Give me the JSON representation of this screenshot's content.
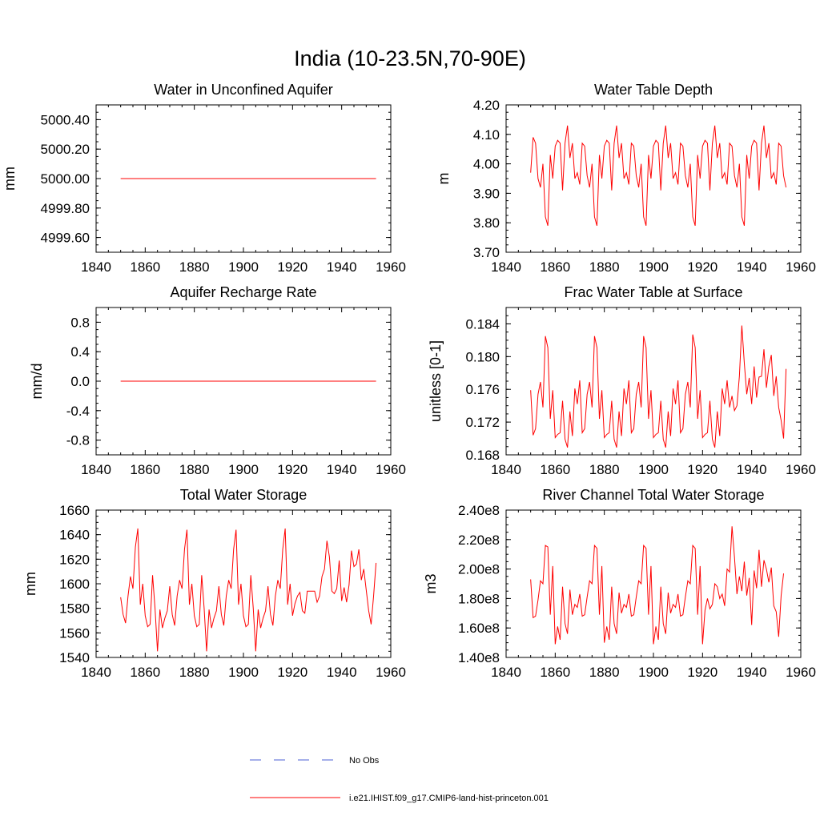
{
  "title": "India (10-23.5N,70-90E)",
  "legend": {
    "items": [
      {
        "label": "No Obs",
        "color": "#4b5fd6",
        "style": "dashed"
      },
      {
        "label": "i.e21.IHIST.f09_g17.CMIP6-land-hist-princeton.001",
        "color": "#ff0000",
        "style": "solid"
      }
    ]
  },
  "chart_data": [
    {
      "type": "line",
      "title": "Water in Unconfined Aquifer",
      "ylabel": "mm",
      "xlim": [
        1840,
        1960
      ],
      "ylim": [
        4999.5,
        5000.5
      ],
      "xticks": [
        1840,
        1860,
        1880,
        1900,
        1920,
        1940,
        1960
      ],
      "yticks": [
        4999.6,
        4999.8,
        5000.0,
        5000.2,
        5000.4
      ],
      "ytick_labels": [
        "4999.60",
        "4999.80",
        "5000.00",
        "5000.20",
        "5000.40"
      ],
      "series": [
        {
          "color": "#ff0000",
          "x_start": 1850,
          "constant": 5000.0,
          "values": []
        }
      ]
    },
    {
      "type": "line",
      "title": "Water Table Depth",
      "ylabel": "m",
      "xlim": [
        1840,
        1960
      ],
      "ylim": [
        3.7,
        4.2
      ],
      "xticks": [
        1840,
        1860,
        1880,
        1900,
        1920,
        1940,
        1960
      ],
      "yticks": [
        3.7,
        3.8,
        3.9,
        4.0,
        4.1,
        4.2
      ],
      "ytick_labels": [
        "3.70",
        "3.80",
        "3.90",
        "4.00",
        "4.10",
        "4.20"
      ],
      "series": [
        {
          "color": "#ff0000",
          "x_start": 1850,
          "values": [
            3.97,
            4.09,
            4.07,
            3.95,
            3.92,
            4.0,
            3.82,
            3.79,
            4.03,
            3.95,
            4.06,
            4.08,
            4.07,
            3.91,
            4.07,
            4.13,
            4.02,
            4.07,
            3.95,
            3.97,
            3.93,
            4.07,
            4.06,
            3.96,
            3.92,
            4.0,
            3.82,
            3.79,
            4.03,
            3.95,
            4.06,
            4.08,
            4.07,
            3.91,
            4.07,
            4.13,
            4.02,
            4.07,
            3.95,
            3.97,
            3.93,
            4.07,
            4.06,
            3.96,
            3.92,
            4.0,
            3.82,
            3.79,
            4.03,
            3.95,
            4.06,
            4.08,
            4.07,
            3.91,
            4.07,
            4.13,
            4.02,
            4.07,
            3.95,
            3.97,
            3.93,
            4.07,
            4.06,
            3.96,
            3.92,
            4.0,
            3.82,
            3.79,
            4.03,
            3.95,
            4.06,
            4.08,
            4.07,
            3.91,
            4.07,
            4.13,
            4.02,
            4.07,
            3.95,
            3.97,
            3.93,
            4.07,
            4.06,
            3.96,
            3.92,
            4.0,
            3.82,
            3.79,
            4.03,
            3.95,
            4.06,
            4.08,
            4.07,
            3.91,
            4.07,
            4.13,
            4.02,
            4.07,
            3.95,
            3.97,
            3.93,
            4.07,
            4.06,
            3.96,
            3.92
          ]
        }
      ]
    },
    {
      "type": "line",
      "title": "Aquifer Recharge Rate",
      "ylabel": "mm/d",
      "xlim": [
        1840,
        1960
      ],
      "ylim": [
        -1.0,
        1.0
      ],
      "xticks": [
        1840,
        1860,
        1880,
        1900,
        1920,
        1940,
        1960
      ],
      "yticks": [
        -0.8,
        -0.4,
        0.0,
        0.4,
        0.8
      ],
      "ytick_labels": [
        "-0.8",
        "-0.4",
        "0.0",
        "0.4",
        "0.8"
      ],
      "series": [
        {
          "color": "#ff0000",
          "x_start": 1850,
          "constant": 0.0,
          "values": []
        }
      ]
    },
    {
      "type": "line",
      "title": "Frac Water Table at Surface",
      "ylabel": "unitless [0-1]",
      "xlim": [
        1840,
        1960
      ],
      "ylim": [
        0.168,
        0.186
      ],
      "xticks": [
        1840,
        1860,
        1880,
        1900,
        1920,
        1940,
        1960
      ],
      "yticks": [
        0.168,
        0.172,
        0.176,
        0.18,
        0.184
      ],
      "ytick_labels": [
        "0.168",
        "0.172",
        "0.176",
        "0.180",
        "0.184"
      ],
      "series": [
        {
          "color": "#ff0000",
          "x_start": 1850,
          "values": [
            0.1759,
            0.1704,
            0.1712,
            0.1754,
            0.1769,
            0.1738,
            0.1825,
            0.1811,
            0.1724,
            0.1759,
            0.1701,
            0.1705,
            0.1707,
            0.1746,
            0.1699,
            0.1689,
            0.1733,
            0.1703,
            0.1761,
            0.1742,
            0.1771,
            0.1707,
            0.1712,
            0.1754,
            0.1769,
            0.1738,
            0.1825,
            0.1811,
            0.1724,
            0.1759,
            0.1701,
            0.1705,
            0.1707,
            0.1746,
            0.1699,
            0.1689,
            0.1733,
            0.1703,
            0.1761,
            0.1742,
            0.1771,
            0.1707,
            0.1712,
            0.1754,
            0.1769,
            0.1738,
            0.1825,
            0.1811,
            0.1724,
            0.1759,
            0.1701,
            0.1705,
            0.1707,
            0.1746,
            0.1699,
            0.1689,
            0.1733,
            0.1703,
            0.1761,
            0.1742,
            0.1771,
            0.1707,
            0.1712,
            0.1754,
            0.1769,
            0.1738,
            0.1827,
            0.1811,
            0.1724,
            0.1759,
            0.1701,
            0.1705,
            0.1707,
            0.1746,
            0.1699,
            0.1689,
            0.1733,
            0.1703,
            0.1761,
            0.1742,
            0.1771,
            0.1738,
            0.1752,
            0.1734,
            0.174,
            0.1776,
            0.1838,
            0.1792,
            0.1754,
            0.1774,
            0.1742,
            0.1788,
            0.175,
            0.1775,
            0.1776,
            0.1809,
            0.1762,
            0.1788,
            0.1802,
            0.1752,
            0.1776,
            0.1738,
            0.1722,
            0.17,
            0.1785
          ]
        }
      ]
    },
    {
      "type": "line",
      "title": "Total Water Storage",
      "ylabel": "mm",
      "xlim": [
        1840,
        1960
      ],
      "ylim": [
        1540,
        1660
      ],
      "xticks": [
        1840,
        1860,
        1880,
        1900,
        1920,
        1940,
        1960
      ],
      "yticks": [
        1540,
        1560,
        1580,
        1600,
        1620,
        1640,
        1660
      ],
      "ytick_labels": [
        "1540",
        "1560",
        "1580",
        "1600",
        "1620",
        "1640",
        "1660"
      ],
      "series": [
        {
          "color": "#ff0000",
          "x_start": 1850,
          "values": [
            1589,
            1575,
            1568,
            1590,
            1606,
            1596,
            1630,
            1645,
            1583,
            1600,
            1574,
            1565,
            1567,
            1607,
            1580,
            1545,
            1579,
            1564,
            1572,
            1578,
            1598,
            1575,
            1566,
            1590,
            1603,
            1596,
            1628,
            1644,
            1583,
            1600,
            1574,
            1565,
            1567,
            1607,
            1580,
            1545,
            1579,
            1564,
            1572,
            1578,
            1598,
            1575,
            1566,
            1590,
            1603,
            1596,
            1628,
            1644,
            1583,
            1600,
            1574,
            1565,
            1567,
            1607,
            1580,
            1545,
            1579,
            1564,
            1572,
            1578,
            1598,
            1575,
            1566,
            1590,
            1603,
            1596,
            1628,
            1645,
            1583,
            1600,
            1574,
            1584,
            1590,
            1593,
            1578,
            1576,
            1594,
            1594,
            1594,
            1594,
            1585,
            1590,
            1606,
            1612,
            1635,
            1622,
            1594,
            1592,
            1596,
            1619,
            1586,
            1597,
            1585,
            1599,
            1627,
            1614,
            1616,
            1628,
            1603,
            1612,
            1595,
            1578,
            1567,
            1590,
            1617
          ]
        }
      ]
    },
    {
      "type": "line",
      "title": "River Channel Total Water Storage",
      "ylabel": "m3",
      "xlim": [
        1840,
        1960
      ],
      "ylim": [
        140000000,
        240000000
      ],
      "xticks": [
        1840,
        1860,
        1880,
        1900,
        1920,
        1940,
        1960
      ],
      "yticks": [
        140000000,
        160000000,
        180000000,
        200000000,
        220000000,
        240000000
      ],
      "ytick_labels": [
        "1.40e8",
        "1.60e8",
        "1.80e8",
        "2.00e8",
        "2.20e8",
        "2.40e8"
      ],
      "series": [
        {
          "color": "#ff0000",
          "x_start": 1850,
          "values": [
            193000000,
            167000000,
            168000000,
            179000000,
            192000000,
            190000000,
            216000000,
            215000000,
            169000000,
            202000000,
            149000000,
            161000000,
            152000000,
            188000000,
            163000000,
            156000000,
            186000000,
            169000000,
            176000000,
            174000000,
            183000000,
            168000000,
            169000000,
            181000000,
            192000000,
            190000000,
            216000000,
            214000000,
            169000000,
            202000000,
            150000000,
            161000000,
            152000000,
            188000000,
            163000000,
            156000000,
            184000000,
            170000000,
            176000000,
            174000000,
            183000000,
            168000000,
            169000000,
            181000000,
            192000000,
            190000000,
            216000000,
            214000000,
            169000000,
            202000000,
            149000000,
            161000000,
            152000000,
            188000000,
            163000000,
            156000000,
            184000000,
            170000000,
            176000000,
            174000000,
            183000000,
            168000000,
            169000000,
            181000000,
            192000000,
            190000000,
            216000000,
            214000000,
            169000000,
            202000000,
            149000000,
            172000000,
            180000000,
            173000000,
            176000000,
            190000000,
            188000000,
            180000000,
            183000000,
            175000000,
            200000000,
            198000000,
            229000000,
            208000000,
            183000000,
            195000000,
            185000000,
            205000000,
            182000000,
            194000000,
            162000000,
            199000000,
            187000000,
            213000000,
            188000000,
            206000000,
            200000000,
            191000000,
            201000000,
            175000000,
            171000000,
            154000000,
            182000000,
            197000000
          ]
        }
      ]
    }
  ]
}
